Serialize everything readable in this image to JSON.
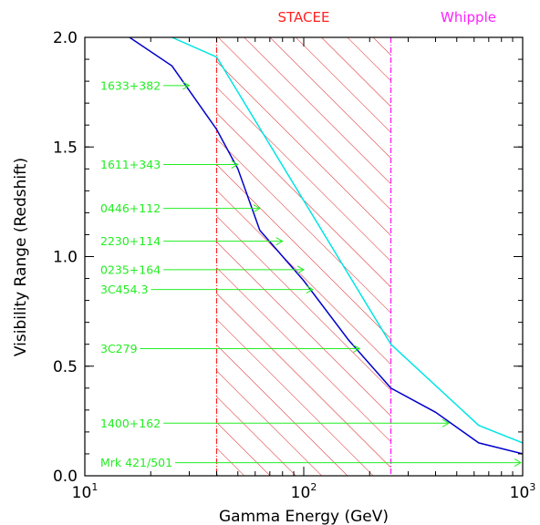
{
  "chart_data": {
    "type": "line",
    "xlabel": "Gamma Energy (GeV)",
    "ylabel": "Visibility Range (Redshift)",
    "xscale": "log",
    "xlim": [
      10,
      1000
    ],
    "ylim": [
      0.0,
      2.0
    ],
    "x_ticks": [
      {
        "value": 10,
        "label": "10",
        "exp": "1"
      },
      {
        "value": 100,
        "label": "10",
        "exp": "2"
      },
      {
        "value": 1000,
        "label": "10",
        "exp": "3"
      }
    ],
    "y_ticks": [
      {
        "value": 0.0,
        "label": "0.0"
      },
      {
        "value": 0.5,
        "label": "0.5"
      },
      {
        "value": 1.0,
        "label": "1.0"
      },
      {
        "value": 1.5,
        "label": "1.5"
      },
      {
        "value": 2.0,
        "label": "2.0"
      }
    ],
    "series": [
      {
        "color": "#0000cc",
        "x": [
          16,
          25,
          40,
          50,
          63,
          100,
          160,
          250,
          400,
          630,
          1000
        ],
        "y": [
          2.0,
          1.87,
          1.58,
          1.4,
          1.12,
          0.89,
          0.62,
          0.4,
          0.29,
          0.15,
          0.1
        ]
      },
      {
        "color": "#00e5e5",
        "x": [
          25,
          40,
          250,
          630,
          1000
        ],
        "y": [
          2.0,
          1.91,
          0.6,
          0.23,
          0.15
        ]
      }
    ],
    "bands": [
      {
        "label": "STACEE",
        "x_start": 40,
        "x_end": 250,
        "color": "#ff2222",
        "hatched": true
      },
      {
        "label": "Whipple",
        "x_start": 250,
        "color": "#ff22ff",
        "hatched": false
      }
    ],
    "annotations": [
      {
        "label": "1633+382",
        "y": 1.78,
        "x_arrow_end": 30
      },
      {
        "label": "1611+343",
        "y": 1.42,
        "x_arrow_end": 50
      },
      {
        "label": "0446+112",
        "y": 1.22,
        "x_arrow_end": 63
      },
      {
        "label": "2230+114",
        "y": 1.07,
        "x_arrow_end": 80
      },
      {
        "label": "0235+164",
        "y": 0.94,
        "x_arrow_end": 100
      },
      {
        "label": "3C454.3",
        "y": 0.85,
        "x_arrow_end": 110
      },
      {
        "label": "3C279",
        "y": 0.58,
        "x_arrow_end": 180
      },
      {
        "label": "1400+162",
        "y": 0.24,
        "x_arrow_end": 460
      },
      {
        "label": "Mrk 421/501",
        "y": 0.06,
        "x_arrow_end": 1000
      }
    ],
    "annotation_color": "#22ee22",
    "grid": false,
    "legend": "none"
  }
}
